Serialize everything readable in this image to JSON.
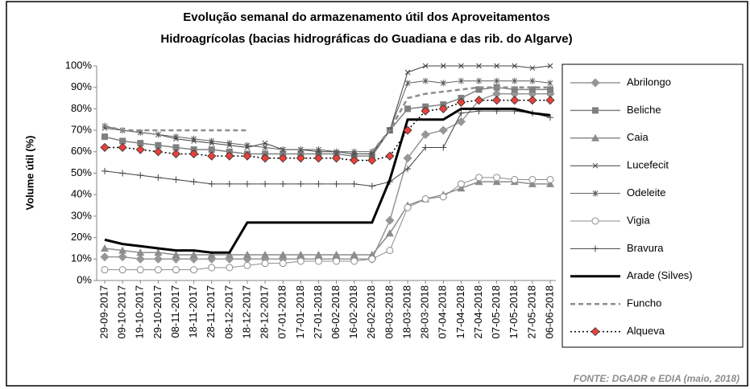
{
  "chart_data": {
    "type": "line",
    "title": [
      "Evolução semanal do armazenamento útil dos Aproveitamentos",
      "Hidroagrícolas (bacias hidrográficas do Guadiana e das rib. do Algarve)"
    ],
    "y_label": "Volume útil (%)",
    "source": "FONTE: DGADR e EDIA (maio, 2018)",
    "categories": [
      "29-09-2017",
      "09-10-2017",
      "19-10-2017",
      "29-10-2017",
      "08-11-2017",
      "18-11-2017",
      "28-11-2017",
      "08-12-2017",
      "18-12-2017",
      "28-12-2017",
      "07-01-2018",
      "17-01-2018",
      "27-01-2018",
      "06-02-2018",
      "16-02-2018",
      "26-02-2018",
      "08-03-2018",
      "18-03-2018",
      "28-03-2018",
      "07-04-2018",
      "17-04-2018",
      "27-04-2018",
      "07-05-2018",
      "17-05-2018",
      "27-05-2018",
      "06-06-2018"
    ],
    "ylim": [
      0,
      100
    ],
    "yticks": [
      {
        "value": 0,
        "label": "0%"
      },
      {
        "value": 10,
        "label": "10%"
      },
      {
        "value": 20,
        "label": "20%"
      },
      {
        "value": 30,
        "label": "30%"
      },
      {
        "value": 40,
        "label": "40%"
      },
      {
        "value": 50,
        "label": "50%"
      },
      {
        "value": 60,
        "label": "60%"
      },
      {
        "value": 70,
        "label": "70%"
      },
      {
        "value": 80,
        "label": "80%"
      },
      {
        "value": 90,
        "label": "90%"
      },
      {
        "value": 100,
        "label": "100%"
      }
    ],
    "legend": "right",
    "series": [
      {
        "name": "Abrilongo",
        "color": "#969696",
        "marker": "diamond",
        "width": 1.5,
        "values": [
          11,
          11,
          10,
          10,
          10,
          10,
          10,
          10,
          10,
          10,
          10,
          10,
          10,
          10,
          10,
          10,
          28,
          57,
          68,
          70,
          74,
          84,
          87,
          87,
          87,
          87
        ]
      },
      {
        "name": "Beliche",
        "color": "#808080",
        "marker": "square",
        "width": 1.5,
        "values": [
          67,
          65,
          64,
          63,
          62,
          61,
          61,
          60,
          59,
          59,
          59,
          59,
          59,
          59,
          58,
          58,
          70,
          80,
          81,
          82,
          85,
          89,
          90,
          89,
          89,
          89
        ]
      },
      {
        "name": "Caia",
        "color": "#8c8c8c",
        "marker": "triangle",
        "width": 1.5,
        "values": [
          15,
          14,
          13,
          13,
          12,
          12,
          12,
          12,
          12,
          12,
          12,
          12,
          12,
          12,
          12,
          12,
          22,
          35,
          38,
          40,
          43,
          46,
          46,
          46,
          45,
          45
        ]
      },
      {
        "name": "Lucefecit",
        "color": "#404040",
        "marker": "x",
        "width": 1,
        "values": [
          71,
          70,
          69,
          68,
          66,
          65,
          64,
          63,
          62,
          64,
          61,
          61,
          60,
          60,
          59,
          59,
          70,
          97,
          100,
          100,
          100,
          100,
          100,
          100,
          99,
          100
        ]
      },
      {
        "name": "Odeleite",
        "color": "#595959",
        "marker": "asterisk",
        "width": 1,
        "values": [
          72,
          70,
          69,
          68,
          67,
          66,
          65,
          64,
          63,
          62,
          61,
          61,
          61,
          60,
          60,
          60,
          70,
          92,
          93,
          92,
          93,
          93,
          93,
          93,
          93,
          92
        ]
      },
      {
        "name": "Vigia",
        "color": "#8c8c8c",
        "marker": "circle",
        "width": 1,
        "values": [
          5,
          5,
          5,
          5,
          5,
          5,
          6,
          6,
          7,
          8,
          8,
          9,
          9,
          9,
          9,
          10,
          14,
          34,
          38,
          39,
          45,
          48,
          48,
          47,
          47,
          47
        ]
      },
      {
        "name": "Bravura",
        "color": "#404040",
        "marker": "plus",
        "width": 1,
        "values": [
          51,
          50,
          49,
          48,
          47,
          46,
          45,
          45,
          45,
          45,
          45,
          45,
          45,
          45,
          45,
          44,
          46,
          52,
          62,
          62,
          78,
          79,
          79,
          79,
          78,
          76
        ]
      },
      {
        "name": "Arade (Silves)",
        "color": "#000000",
        "marker": "none",
        "width": 3,
        "values": [
          19,
          17,
          16,
          15,
          14,
          14,
          13,
          13,
          27,
          27,
          27,
          27,
          27,
          27,
          27,
          27,
          47,
          75,
          75,
          75,
          80,
          80,
          80,
          80,
          78,
          77
        ]
      },
      {
        "name": "Funcho",
        "color": "#8c8c8c",
        "marker": "none",
        "width": 2.5,
        "dash": "6 4",
        "values": [
          72,
          70,
          70,
          70,
          70,
          70,
          70,
          70,
          70,
          null,
          null,
          null,
          null,
          null,
          null,
          60,
          70,
          85,
          87,
          88,
          89,
          90,
          90,
          90,
          90,
          90
        ]
      },
      {
        "name": "Alqueva",
        "color": "#000000",
        "marker": "diamond",
        "marker_color": "#e8413a",
        "width": 1.5,
        "dash": "2 3",
        "values": [
          62,
          62,
          61,
          60,
          59,
          59,
          58,
          58,
          58,
          57,
          57,
          57,
          57,
          57,
          56,
          56,
          58,
          70,
          79,
          80,
          83,
          84,
          84,
          84,
          84,
          84
        ]
      }
    ]
  }
}
